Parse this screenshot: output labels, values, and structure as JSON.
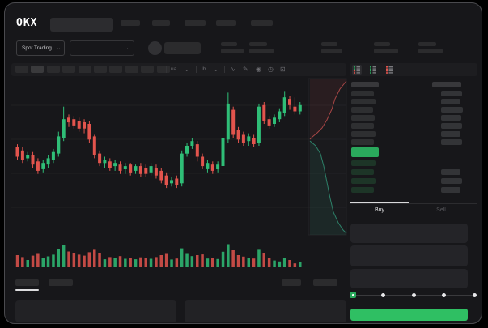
{
  "colors": {
    "candle_green": "#2fbe77",
    "candle_red": "#e2544d",
    "book_green": "#2aa85c",
    "button_green": "#2fbf63",
    "depth_ask_line": "#a84646",
    "depth_bid_line": "#2d8068"
  },
  "header": {
    "logo_text": "OKX",
    "search": {
      "placeholder": ""
    },
    "nav_items": [
      {
        "w": 24
      },
      {
        "w": 22
      },
      {
        "w": 26
      },
      {
        "w": 24
      },
      {
        "w": 27
      }
    ],
    "market_selector": {
      "label": "Spot Trading",
      "chevron": "⌄"
    },
    "pair_selector": {
      "chevron": "⌄"
    },
    "stats": [
      {
        "top_w": 20,
        "bot_w": 28
      },
      {
        "top_w": 22,
        "bot_w": 30
      },
      {
        "top_w": 20,
        "bot_w": 26
      },
      {
        "top_w": 20,
        "bot_w": 30
      },
      {
        "top_w": 22,
        "bot_w": 30
      }
    ]
  },
  "chart_toolbar": {
    "timeframes": 10,
    "active_index": 1,
    "dropdown1_label": "ua",
    "dropdown2_label": "Ib",
    "chevron": "⌄",
    "icons": {
      "wave": "∿",
      "pencil": "✎",
      "camera": "◉",
      "clock": "◷",
      "expand": "⊡"
    }
  },
  "chart_data": {
    "type": "candlestick",
    "title": "",
    "xlabel": "",
    "ylabel": "",
    "note": "skeleton trading chart, no axis labels rendered in UI; values normalized 0-100 of pane height",
    "ylim": [
      0,
      100
    ],
    "grid": true,
    "candles_ochlv": [
      [
        56,
        50,
        58,
        48,
        50
      ],
      [
        54,
        48,
        56,
        46,
        42
      ],
      [
        49,
        51,
        53,
        47,
        30
      ],
      [
        51,
        45,
        53,
        43,
        48
      ],
      [
        47,
        41,
        49,
        39,
        55
      ],
      [
        42,
        46,
        48,
        40,
        38
      ],
      [
        45,
        49,
        51,
        43,
        45
      ],
      [
        48,
        53,
        55,
        46,
        52
      ],
      [
        52,
        63,
        66,
        50,
        75
      ],
      [
        62,
        74,
        82,
        60,
        90
      ],
      [
        75,
        72,
        77,
        69,
        65
      ],
      [
        74,
        70,
        76,
        68,
        58
      ],
      [
        73,
        68,
        75,
        66,
        52
      ],
      [
        72,
        68,
        74,
        65,
        48
      ],
      [
        71,
        61,
        73,
        59,
        62
      ],
      [
        63,
        51,
        64,
        49,
        72
      ],
      [
        52,
        46,
        54,
        44,
        58
      ],
      [
        46,
        48,
        50,
        43,
        33
      ],
      [
        47,
        43,
        49,
        41,
        42
      ],
      [
        44,
        46,
        48,
        41,
        38
      ],
      [
        45,
        41,
        47,
        39,
        46
      ],
      [
        42,
        44,
        46,
        39,
        35
      ],
      [
        45,
        40,
        46,
        38,
        40
      ],
      [
        41,
        44,
        45,
        39,
        33
      ],
      [
        44,
        39,
        46,
        37,
        41
      ],
      [
        43,
        39,
        45,
        37,
        37
      ],
      [
        40,
        44,
        46,
        38,
        35
      ],
      [
        43,
        38,
        45,
        36,
        42
      ],
      [
        41,
        35,
        43,
        33,
        50
      ],
      [
        38,
        32,
        40,
        30,
        55
      ],
      [
        33,
        35,
        37,
        31,
        32
      ],
      [
        36,
        32,
        38,
        30,
        36
      ],
      [
        33,
        52,
        54,
        31,
        78
      ],
      [
        52,
        57,
        59,
        50,
        55
      ],
      [
        57,
        60,
        62,
        55,
        46
      ],
      [
        58,
        50,
        60,
        47,
        50
      ],
      [
        50,
        44,
        52,
        42,
        53
      ],
      [
        42,
        46,
        48,
        40,
        36
      ],
      [
        45,
        41,
        47,
        39,
        38
      ],
      [
        42,
        45,
        47,
        40,
        34
      ],
      [
        44,
        62,
        64,
        42,
        64
      ],
      [
        61,
        84,
        91,
        59,
        95
      ],
      [
        80,
        64,
        82,
        62,
        70
      ],
      [
        67,
        61,
        69,
        59,
        50
      ],
      [
        64,
        59,
        66,
        57,
        44
      ],
      [
        60,
        63,
        65,
        57,
        38
      ],
      [
        62,
        58,
        64,
        56,
        36
      ],
      [
        59,
        82,
        84,
        57,
        72
      ],
      [
        83,
        73,
        85,
        71,
        58
      ],
      [
        74,
        70,
        76,
        68,
        40
      ],
      [
        71,
        75,
        77,
        69,
        28
      ],
      [
        74,
        79,
        81,
        72,
        24
      ],
      [
        78,
        88,
        92,
        76,
        38
      ],
      [
        87,
        83,
        89,
        80,
        30
      ],
      [
        82,
        79,
        88,
        77,
        16
      ],
      [
        79,
        83,
        85,
        77,
        22
      ]
    ],
    "depth_overlay": {
      "ask_line": [
        [
          428,
          100
        ],
        [
          420,
          110
        ],
        [
          414,
          122
        ],
        [
          410,
          135
        ],
        [
          404,
          148
        ],
        [
          398,
          158
        ],
        [
          392,
          164
        ],
        [
          386,
          169
        ],
        [
          383,
          172
        ]
      ],
      "bid_line": [
        [
          383,
          174
        ],
        [
          390,
          180
        ],
        [
          396,
          190
        ],
        [
          400,
          205
        ],
        [
          404,
          225
        ],
        [
          408,
          245
        ],
        [
          412,
          262
        ],
        [
          418,
          275
        ],
        [
          424,
          284
        ],
        [
          428,
          288
        ]
      ]
    }
  },
  "chart_footer": {
    "tabs_left": [
      {
        "w": 29
      },
      {
        "w": 30
      }
    ],
    "active_index": 0,
    "tabs_right": [
      {
        "w": 24
      },
      {
        "w": 30
      }
    ]
  },
  "orderbook": {
    "view_icons": [
      {
        "name": "book-combined-icon",
        "rows": [
          "g",
          "g",
          "r",
          "r"
        ]
      },
      {
        "name": "book-bids-icon",
        "rows": [
          "g",
          "g",
          "g",
          "g"
        ]
      },
      {
        "name": "book-asks-icon",
        "rows": [
          "r",
          "r",
          "r",
          "r"
        ]
      }
    ],
    "header": {
      "price_w": 34,
      "amount_w": 36
    },
    "asks": [
      [
        28,
        26
      ],
      [
        30,
        24
      ],
      [
        27,
        27
      ],
      [
        29,
        25
      ],
      [
        28,
        26
      ],
      [
        30,
        24
      ],
      [
        28,
        26
      ]
    ],
    "last_price_row": {
      "w": 34
    },
    "bids": [
      [
        30,
        0
      ],
      [
        28,
        24
      ],
      [
        30,
        26
      ],
      [
        28,
        24
      ]
    ]
  },
  "trade_panel": {
    "buy_label": "Buy",
    "sell_label": "Sell",
    "active_tab": "buy",
    "amount_slider": {
      "stops": 5,
      "value_index": 0
    }
  }
}
